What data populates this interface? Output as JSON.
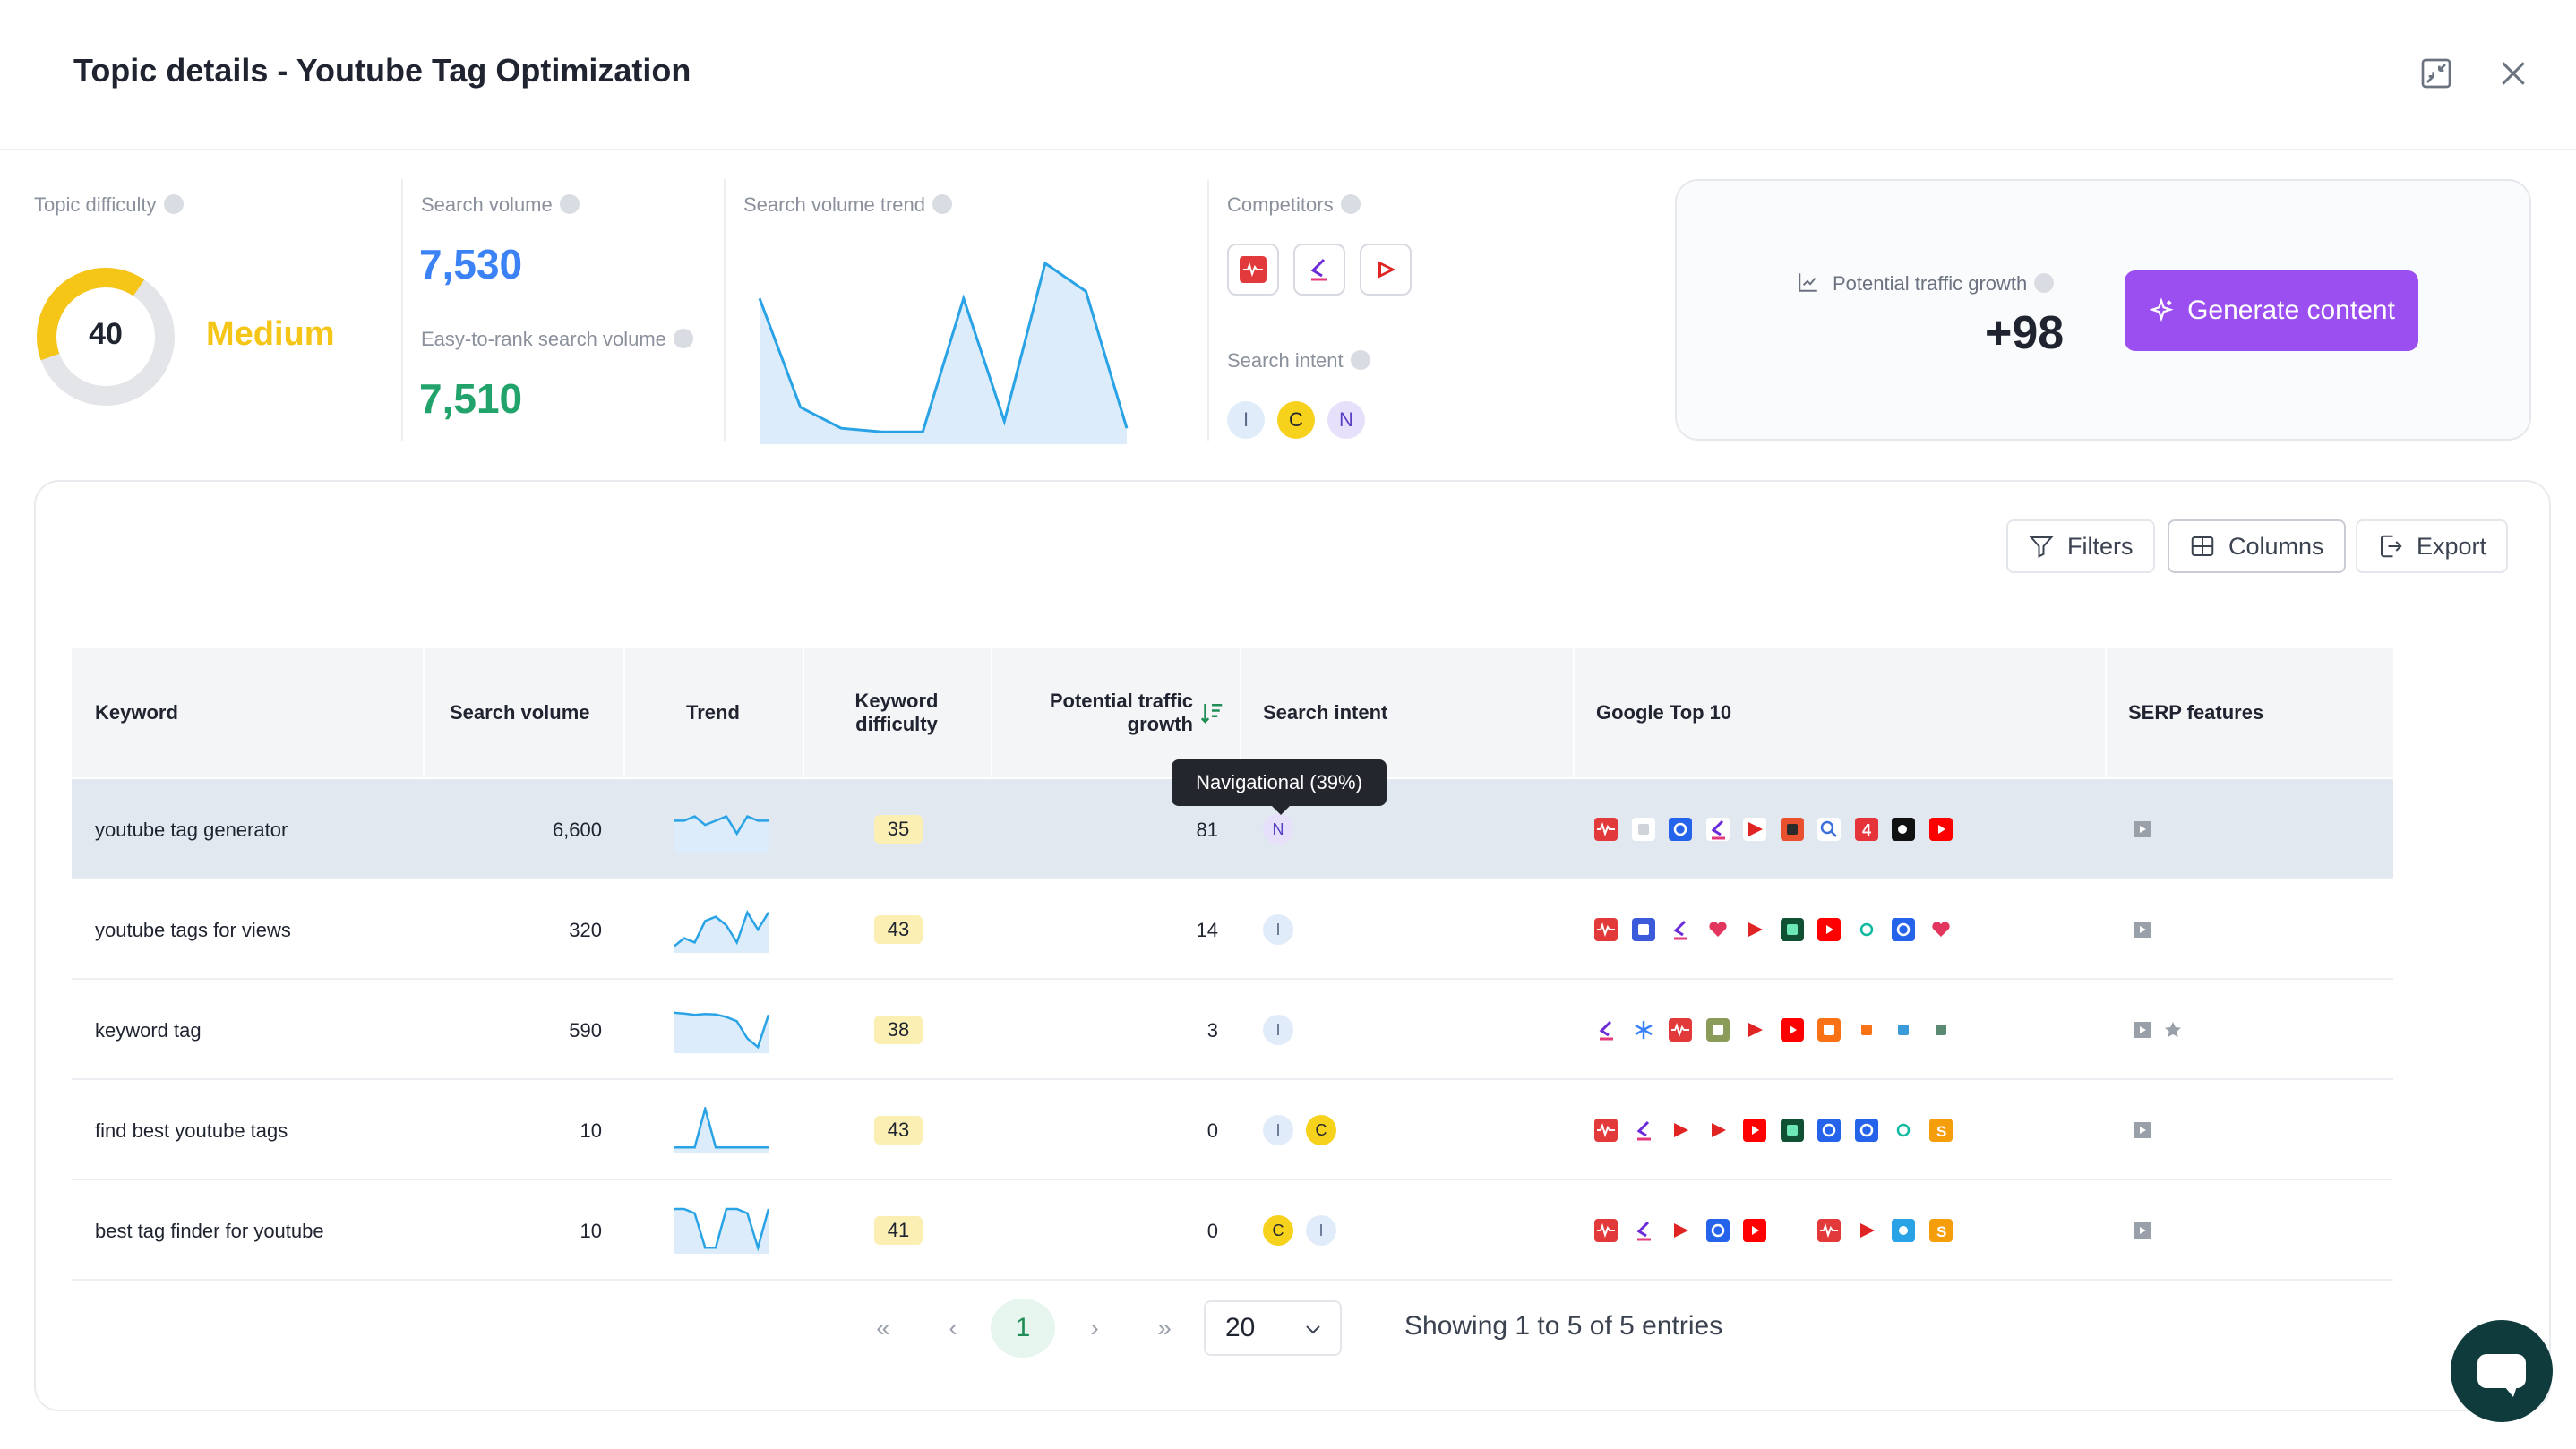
{
  "header": {
    "title": "Topic details - Youtube Tag Optimization"
  },
  "metrics": {
    "difficulty": {
      "label": "Topic difficulty",
      "value": "40",
      "level": "Medium",
      "fill_fraction": 0.4
    },
    "volume": {
      "label": "Search volume",
      "value": "7,530",
      "easy_label": "Easy-to-rank search volume",
      "easy_value": "7,510"
    },
    "trend": {
      "label": "Search volume trend",
      "values": [
        40,
        9,
        3,
        2,
        2,
        40,
        5,
        50,
        42,
        3
      ]
    },
    "competitors": {
      "label": "Competitors",
      "icons": [
        "podcast-icon",
        "jasper-icon",
        "play-logo-icon"
      ]
    },
    "intent": {
      "label": "Search intent",
      "badges": [
        "I",
        "C",
        "N"
      ]
    }
  },
  "growth": {
    "label": "Potential traffic growth",
    "value": "+98",
    "button": "Generate content"
  },
  "toolbar": {
    "filters": "Filters",
    "columns": "Columns",
    "export": "Export"
  },
  "table": {
    "headers": {
      "keyword": "Keyword",
      "volume": "Search volume",
      "trend": "Trend",
      "difficulty_1": "Keyword",
      "difficulty_2": "difficulty",
      "growth_1": "Potential traffic",
      "growth_2": "growth",
      "intent": "Search intent",
      "google": "Google Top 10",
      "serp": "SERP features"
    },
    "rows": [
      {
        "keyword": "youtube tag generator",
        "volume": "6,600",
        "difficulty": "35",
        "growth": "81",
        "intent": [
          "N"
        ],
        "trend": [
          0.7,
          0.7,
          0.8,
          0.6,
          0.7,
          0.8,
          0.4,
          0.8,
          0.7,
          0.7
        ]
      },
      {
        "keyword": "youtube tags for views",
        "volume": "320",
        "difficulty": "43",
        "growth": "14",
        "intent": [
          "I"
        ],
        "trend": [
          0.1,
          0.3,
          0.2,
          0.7,
          0.8,
          0.6,
          0.2,
          0.9,
          0.5,
          0.9
        ]
      },
      {
        "keyword": "keyword tag",
        "volume": "590",
        "difficulty": "38",
        "growth": "3",
        "intent": [
          "I"
        ],
        "trend": [
          0.9,
          0.88,
          0.85,
          0.87,
          0.86,
          0.8,
          0.7,
          0.3,
          0.1,
          0.85
        ]
      },
      {
        "keyword": "find best youtube tags",
        "volume": "10",
        "difficulty": "43",
        "growth": "0",
        "intent": [
          "I",
          "C"
        ],
        "trend": [
          0.1,
          0.1,
          0.1,
          1.0,
          0.1,
          0.1,
          0.1,
          0.1,
          0.1,
          0.1
        ]
      },
      {
        "keyword": "best tag finder for youtube",
        "volume": "10",
        "difficulty": "41",
        "growth": "0",
        "intent": [
          "C",
          "I"
        ],
        "trend": [
          1,
          1,
          0.9,
          0.1,
          0.1,
          1,
          1,
          0.9,
          0.1,
          1
        ]
      }
    ],
    "tooltip": "Navigational (39%)"
  },
  "pagination": {
    "current": "1",
    "per_page": "20",
    "showing": "Showing 1 to 5 of 5 entries"
  },
  "colors": {
    "accent": "#9b4ff0",
    "volume_blue": "#3b82f6",
    "easy_green": "#22a36b",
    "medium_yellow": "#f5c518"
  }
}
